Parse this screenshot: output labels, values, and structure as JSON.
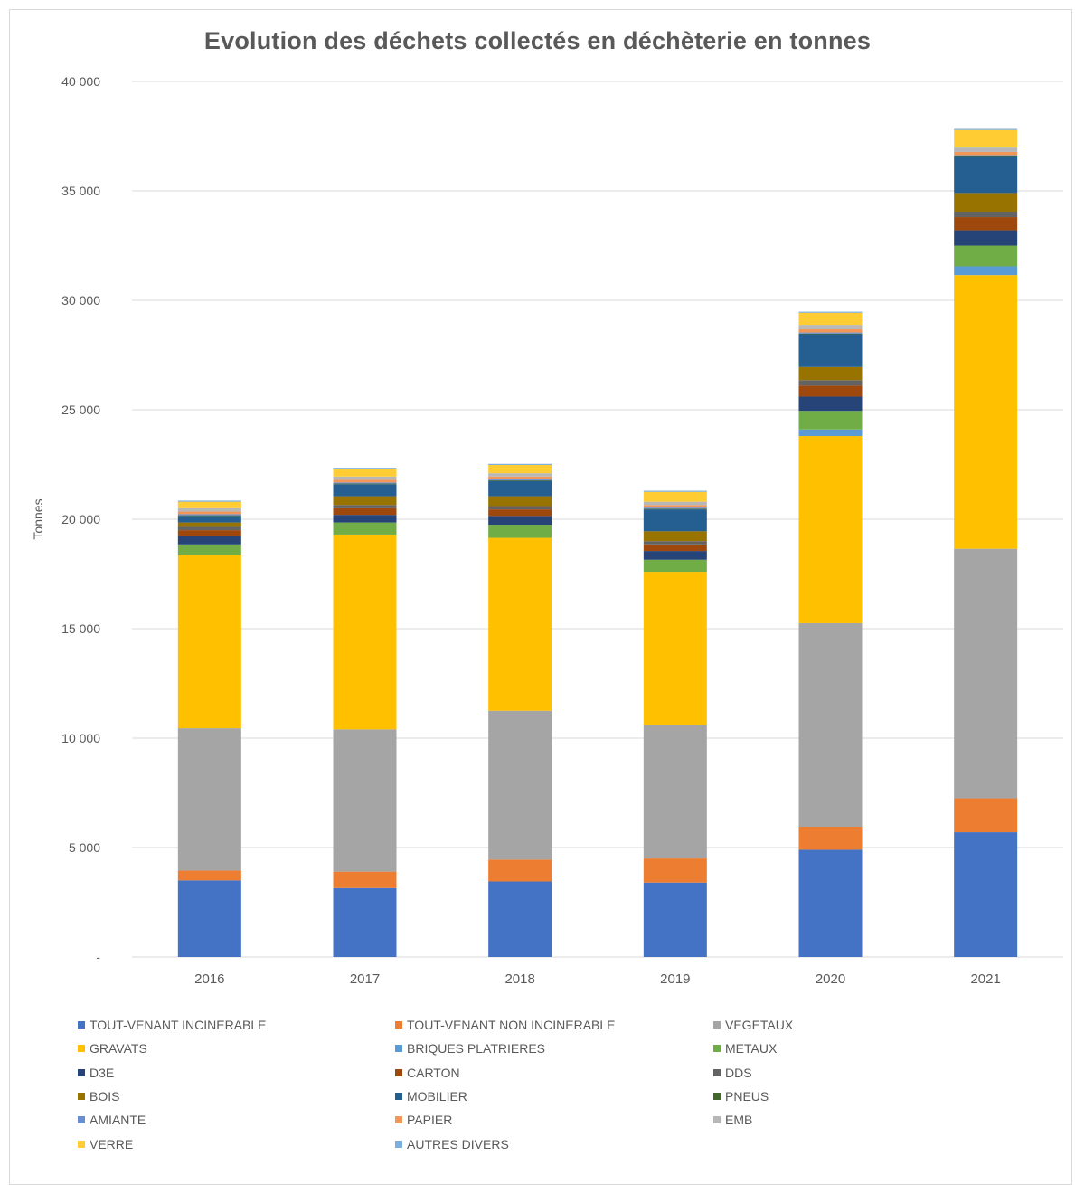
{
  "chart_data": {
    "type": "bar",
    "stacked": true,
    "title": "Evolution des déchets collectés en déchèterie en tonnes",
    "xlabel": "",
    "ylabel": "Tonnes",
    "ylim": [
      0,
      40000
    ],
    "yticks": [
      "-",
      "5 000",
      "10 000",
      "15 000",
      "20 000",
      "25 000",
      "30 000",
      "35 000",
      "40 000"
    ],
    "grid": true,
    "legend_position": "bottom",
    "categories": [
      "2016",
      "2017",
      "2018",
      "2019",
      "2020",
      "2021"
    ],
    "series": [
      {
        "name": "TOUT-VENANT INCINERABLE",
        "color": "#4472c4",
        "values": [
          3500,
          3150,
          3450,
          3400,
          4900,
          5700
        ]
      },
      {
        "name": "TOUT-VENANT NON INCINERABLE",
        "color": "#ed7d31",
        "values": [
          450,
          750,
          1000,
          1100,
          1050,
          1550
        ]
      },
      {
        "name": "VEGETAUX",
        "color": "#a5a5a5",
        "values": [
          6500,
          6500,
          6800,
          6100,
          9300,
          11400
        ]
      },
      {
        "name": "GRAVATS",
        "color": "#ffc000",
        "values": [
          7900,
          8900,
          7900,
          7000,
          8550,
          12500
        ]
      },
      {
        "name": "BRIQUES PLATRIERES",
        "color": "#5b9bd5",
        "values": [
          0,
          0,
          0,
          0,
          300,
          400
        ]
      },
      {
        "name": "METAUX",
        "color": "#70ad47",
        "values": [
          500,
          550,
          600,
          550,
          850,
          950
        ]
      },
      {
        "name": "D3E",
        "color": "#264478",
        "values": [
          400,
          350,
          400,
          400,
          650,
          700
        ]
      },
      {
        "name": "CARTON",
        "color": "#9e480e",
        "values": [
          250,
          300,
          300,
          300,
          500,
          600
        ]
      },
      {
        "name": "DDS",
        "color": "#636363",
        "values": [
          150,
          150,
          150,
          150,
          250,
          250
        ]
      },
      {
        "name": "BOIS",
        "color": "#997300",
        "values": [
          200,
          400,
          450,
          450,
          600,
          850
        ]
      },
      {
        "name": "MOBILIER",
        "color": "#255e91",
        "values": [
          300,
          550,
          700,
          1000,
          1500,
          1650
        ]
      },
      {
        "name": "PNEUS",
        "color": "#43682b",
        "values": [
          30,
          30,
          30,
          30,
          30,
          30
        ]
      },
      {
        "name": "AMIANTE",
        "color": "#698ed0",
        "values": [
          50,
          50,
          50,
          50,
          50,
          50
        ]
      },
      {
        "name": "PAPIER",
        "color": "#f1975a",
        "values": [
          120,
          120,
          120,
          120,
          150,
          150
        ]
      },
      {
        "name": "EMB",
        "color": "#b7b7b7",
        "values": [
          150,
          150,
          150,
          150,
          200,
          200
        ]
      },
      {
        "name": "VERRE",
        "color": "#ffcd33",
        "values": [
          300,
          350,
          380,
          450,
          550,
          800
        ]
      },
      {
        "name": "AUTRES DIVERS",
        "color": "#7cafdd",
        "values": [
          50,
          50,
          50,
          50,
          50,
          50
        ]
      }
    ]
  }
}
